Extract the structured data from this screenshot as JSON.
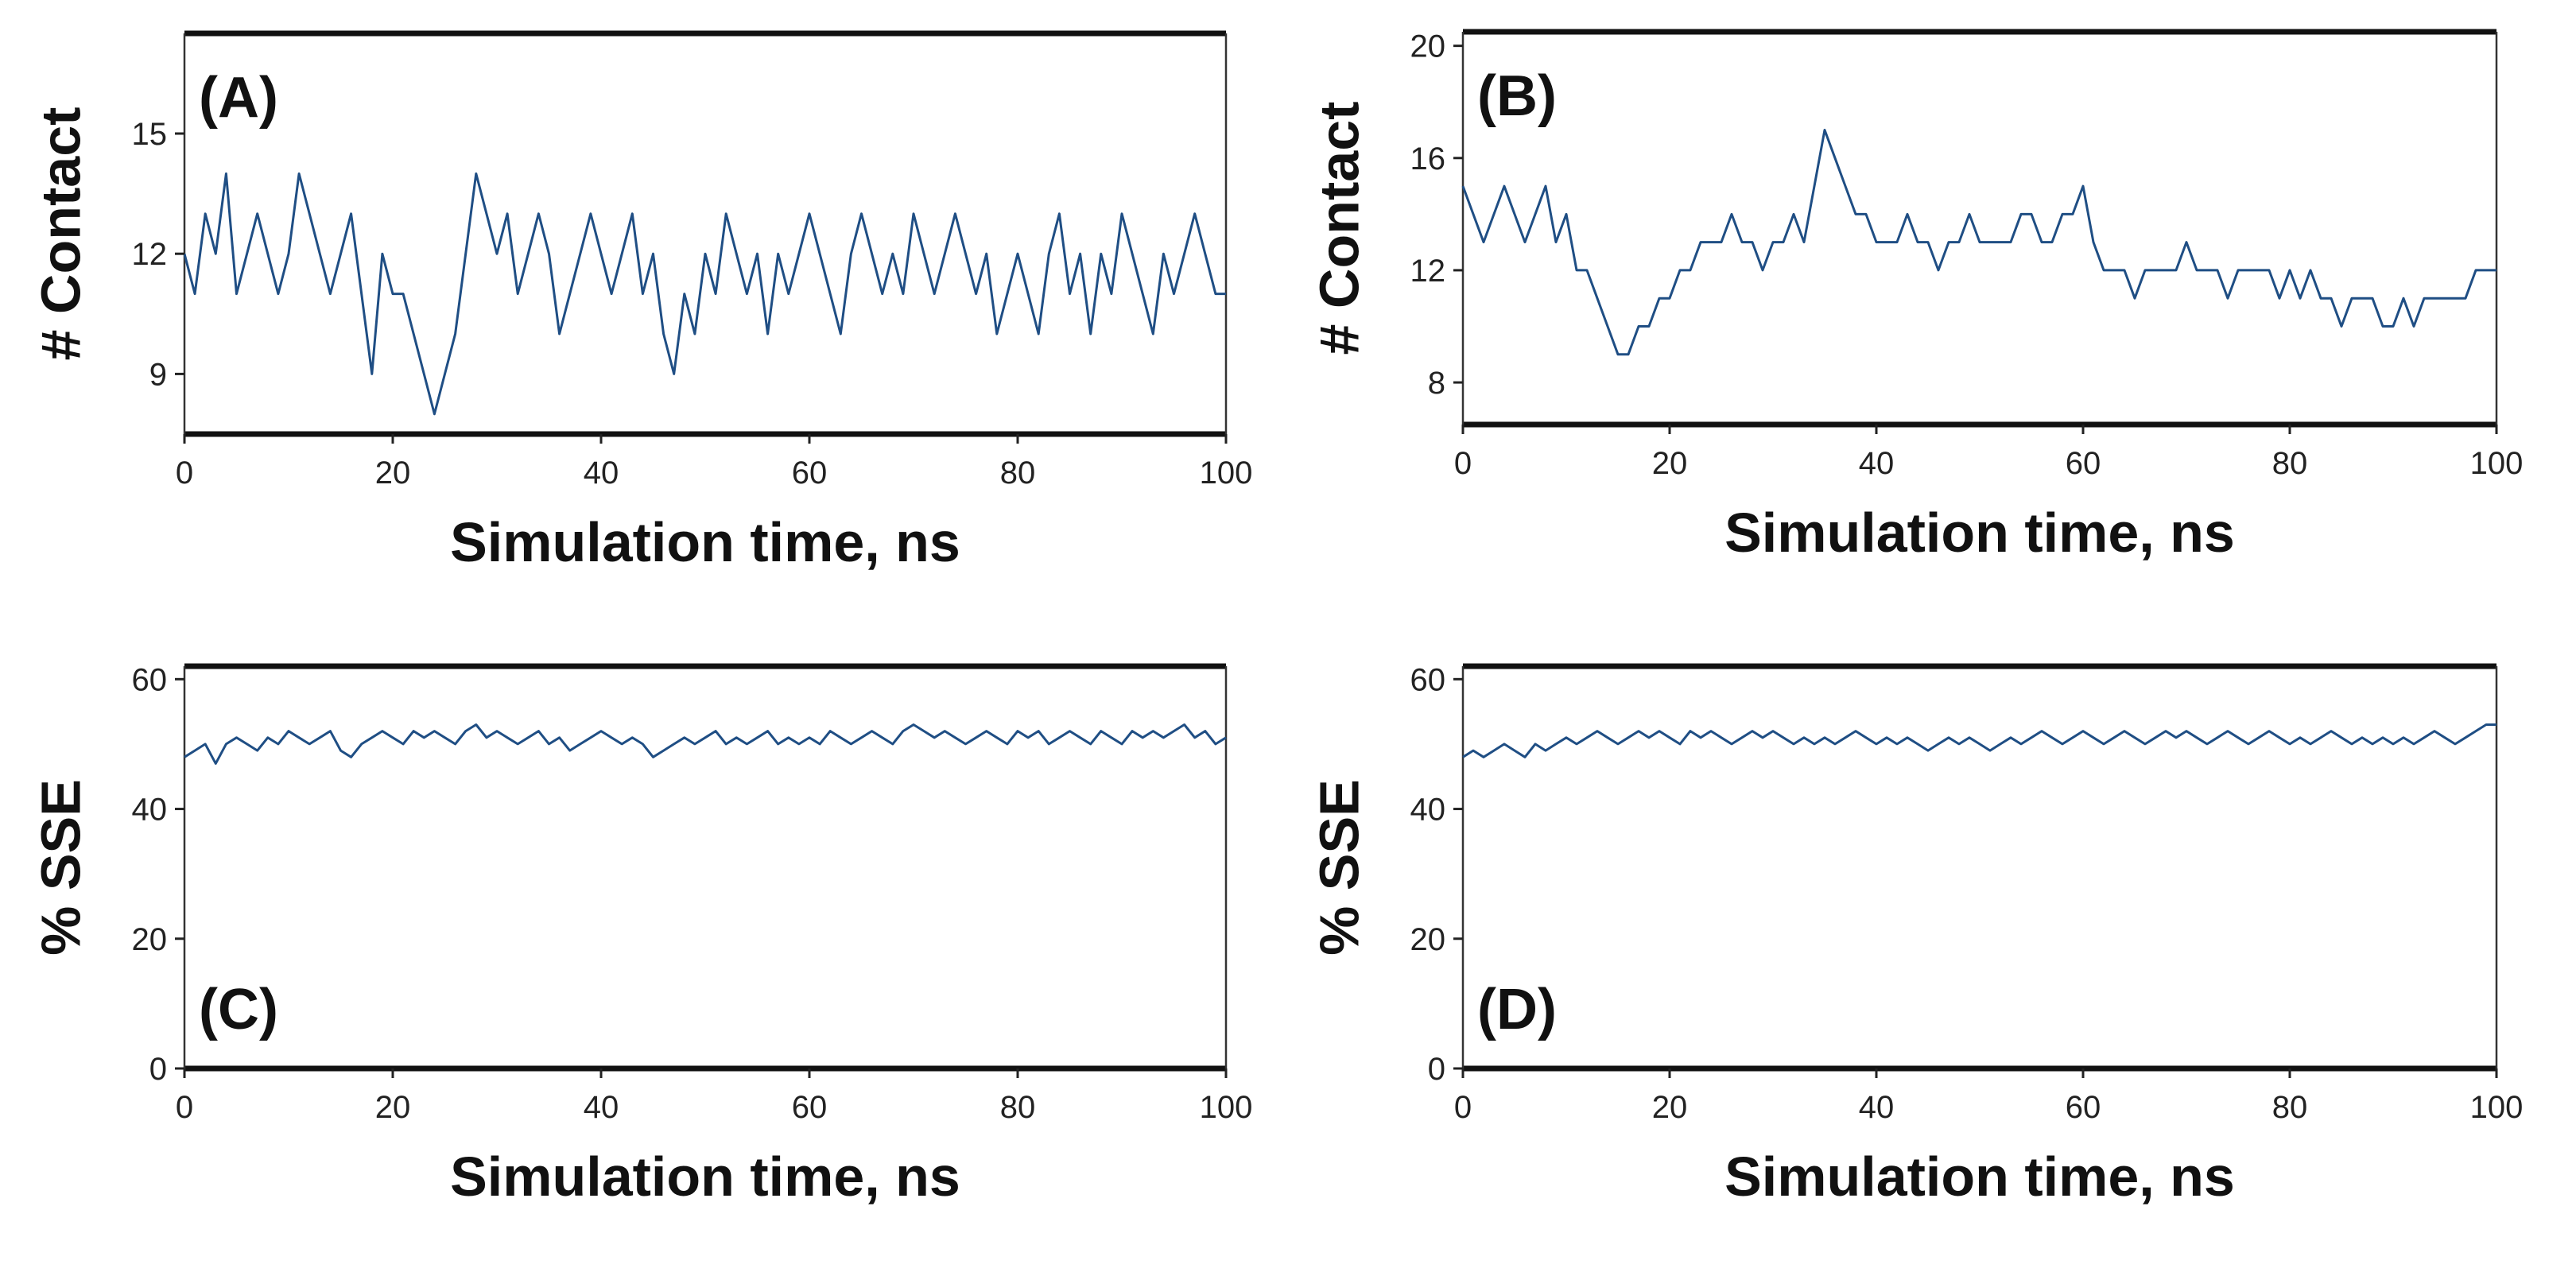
{
  "figure": {
    "series_color": "#1f4e84"
  },
  "chart_data": [
    {
      "id": "A",
      "panel_label": "(A)",
      "type": "line",
      "xlabel": "Simulation time, ns",
      "ylabel": "# Contact",
      "xlim": [
        0,
        100
      ],
      "ylim": [
        7.5,
        17.5
      ],
      "xticks": [
        "0",
        "20",
        "40",
        "60",
        "80",
        "100"
      ],
      "yticks": [
        9,
        12,
        15
      ],
      "yticklabels": [
        "9",
        "12",
        "15"
      ],
      "series": [
        {
          "name": "# Contact",
          "x_start": 0,
          "x_step": 1,
          "values": [
            12,
            11,
            13,
            12,
            14,
            11,
            12,
            13,
            12,
            11,
            12,
            14,
            13,
            12,
            11,
            12,
            13,
            11,
            9,
            12,
            11,
            11,
            10,
            9,
            8,
            9,
            10,
            12,
            14,
            13,
            12,
            13,
            11,
            12,
            13,
            12,
            10,
            11,
            12,
            13,
            12,
            11,
            12,
            13,
            11,
            12,
            10,
            9,
            11,
            10,
            12,
            11,
            13,
            12,
            11,
            12,
            10,
            12,
            11,
            12,
            13,
            12,
            11,
            10,
            12,
            13,
            12,
            11,
            12,
            11,
            13,
            12,
            11,
            12,
            13,
            12,
            11,
            12,
            10,
            11,
            12,
            11,
            10,
            12,
            13,
            11,
            12,
            10,
            12,
            11,
            13,
            12,
            11,
            10,
            12,
            11,
            12,
            13,
            12,
            11,
            11
          ]
        }
      ]
    },
    {
      "id": "B",
      "panel_label": "(B)",
      "type": "line",
      "xlabel": "Simulation time, ns",
      "ylabel": "# Contact",
      "xlim": [
        0,
        100
      ],
      "ylim": [
        6.5,
        20.5
      ],
      "xticks": [
        "0",
        "20",
        "40",
        "60",
        "80",
        "100"
      ],
      "yticks": [
        8,
        12,
        16,
        20
      ],
      "yticklabels": [
        "8",
        "12",
        "16",
        "20"
      ],
      "series": [
        {
          "name": "# Contact",
          "x_start": 0,
          "x_step": 1,
          "values": [
            15,
            14,
            13,
            14,
            15,
            14,
            13,
            14,
            15,
            13,
            14,
            12,
            12,
            11,
            10,
            9,
            9,
            10,
            10,
            11,
            11,
            12,
            12,
            13,
            13,
            13,
            14,
            13,
            13,
            12,
            13,
            13,
            14,
            13,
            15,
            17,
            16,
            15,
            14,
            14,
            13,
            13,
            13,
            14,
            13,
            13,
            12,
            13,
            13,
            14,
            13,
            13,
            13,
            13,
            14,
            14,
            13,
            13,
            14,
            14,
            15,
            13,
            12,
            12,
            12,
            11,
            12,
            12,
            12,
            12,
            13,
            12,
            12,
            12,
            11,
            12,
            12,
            12,
            12,
            11,
            12,
            11,
            12,
            11,
            11,
            10,
            11,
            11,
            11,
            10,
            10,
            11,
            10,
            11,
            11,
            11,
            11,
            11,
            12,
            12,
            12
          ]
        }
      ]
    },
    {
      "id": "C",
      "panel_label": "(C)",
      "type": "line",
      "xlabel": "Simulation time, ns",
      "ylabel": "% SSE",
      "xlim": [
        0,
        100
      ],
      "ylim": [
        0,
        62
      ],
      "xticks": [
        "0",
        "20",
        "40",
        "60",
        "80",
        "100"
      ],
      "yticks": [
        0,
        20,
        40,
        60
      ],
      "yticklabels": [
        "0",
        "20",
        "40",
        "60"
      ],
      "series": [
        {
          "name": "% SSE",
          "x_start": 0,
          "x_step": 1,
          "values": [
            48,
            49,
            50,
            47,
            50,
            51,
            50,
            49,
            51,
            50,
            52,
            51,
            50,
            51,
            52,
            49,
            48,
            50,
            51,
            52,
            51,
            50,
            52,
            51,
            52,
            51,
            50,
            52,
            53,
            51,
            52,
            51,
            50,
            51,
            52,
            50,
            51,
            49,
            50,
            51,
            52,
            51,
            50,
            51,
            50,
            48,
            49,
            50,
            51,
            50,
            51,
            52,
            50,
            51,
            50,
            51,
            52,
            50,
            51,
            50,
            51,
            50,
            52,
            51,
            50,
            51,
            52,
            51,
            50,
            52,
            53,
            52,
            51,
            52,
            51,
            50,
            51,
            52,
            51,
            50,
            52,
            51,
            52,
            50,
            51,
            52,
            51,
            50,
            52,
            51,
            50,
            52,
            51,
            52,
            51,
            52,
            53,
            51,
            52,
            50,
            51
          ]
        }
      ]
    },
    {
      "id": "D",
      "panel_label": "(D)",
      "type": "line",
      "xlabel": "Simulation time, ns",
      "ylabel": "% SSE",
      "xlim": [
        0,
        100
      ],
      "ylim": [
        0,
        62
      ],
      "xticks": [
        "0",
        "20",
        "40",
        "60",
        "80",
        "100"
      ],
      "yticks": [
        0,
        20,
        40,
        60
      ],
      "yticklabels": [
        "0",
        "20",
        "40",
        "60"
      ],
      "series": [
        {
          "name": "% SSE",
          "x_start": 0,
          "x_step": 1,
          "values": [
            48,
            49,
            48,
            49,
            50,
            49,
            48,
            50,
            49,
            50,
            51,
            50,
            51,
            52,
            51,
            50,
            51,
            52,
            51,
            52,
            51,
            50,
            52,
            51,
            52,
            51,
            50,
            51,
            52,
            51,
            52,
            51,
            50,
            51,
            50,
            51,
            50,
            51,
            52,
            51,
            50,
            51,
            50,
            51,
            50,
            49,
            50,
            51,
            50,
            51,
            50,
            49,
            50,
            51,
            50,
            51,
            52,
            51,
            50,
            51,
            52,
            51,
            50,
            51,
            52,
            51,
            50,
            51,
            52,
            51,
            52,
            51,
            50,
            51,
            52,
            51,
            50,
            51,
            52,
            51,
            50,
            51,
            50,
            51,
            52,
            51,
            50,
            51,
            50,
            51,
            50,
            51,
            50,
            51,
            52,
            51,
            50,
            51,
            52,
            53,
            53
          ]
        }
      ]
    }
  ]
}
